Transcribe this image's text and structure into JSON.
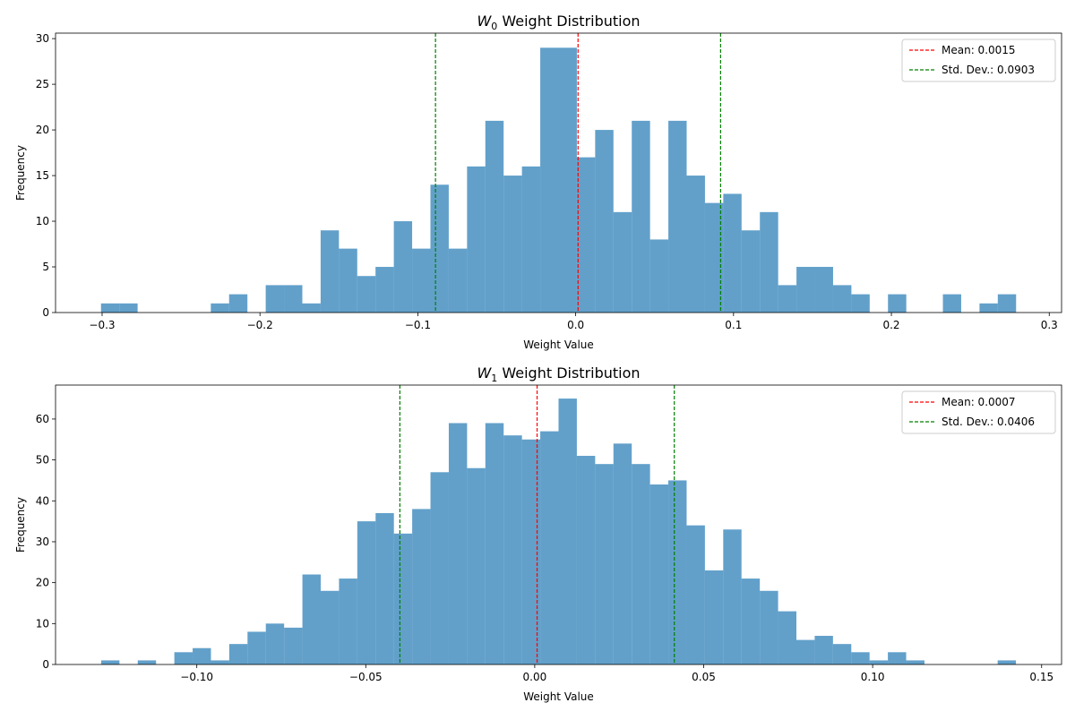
{
  "chart_data": [
    {
      "type": "bar",
      "title_var": "W",
      "title_sub": "0",
      "title_rest": " Weight Distribution",
      "xlabel": "Weight Value",
      "ylabel": "Frequency",
      "bin_range": [
        -0.3007,
        0.279
      ],
      "xlim": [
        -0.3295,
        0.3078
      ],
      "ylim": [
        0,
        30.6
      ],
      "xticks": [
        -0.3,
        -0.2,
        -0.1,
        0.0,
        0.1,
        0.2,
        0.3
      ],
      "xtick_labels": [
        "−0.3",
        "−0.2",
        "−0.1",
        "0.0",
        "0.1",
        "0.2",
        "0.3"
      ],
      "yticks": [
        0,
        5,
        10,
        15,
        20,
        25,
        30
      ],
      "ytick_labels": [
        "0",
        "5",
        "10",
        "15",
        "20",
        "25",
        "30"
      ],
      "values": [
        1,
        1,
        0,
        0,
        0,
        0,
        1,
        2,
        0,
        3,
        3,
        1,
        9,
        7,
        4,
        5,
        10,
        7,
        14,
        7,
        16,
        21,
        15,
        16,
        29,
        29,
        17,
        20,
        11,
        21,
        8,
        21,
        15,
        12,
        13,
        9,
        11,
        3,
        5,
        5,
        3,
        2,
        0,
        2,
        0,
        0,
        2,
        0,
        1,
        2
      ],
      "bar_color": "#1f77b4",
      "mean": 0.0015,
      "std": 0.0903,
      "mean_color": "#ff0000",
      "std_color": "#008000",
      "legend": [
        "Mean: 0.0015",
        "Std. Dev.: 0.0903"
      ],
      "legend_position": "top-right",
      "grid": false
    },
    {
      "type": "bar",
      "title_var": "W",
      "title_sub": "1",
      "title_rest": " Weight Distribution",
      "xlabel": "Weight Value",
      "ylabel": "Frequency",
      "bin_range": [
        -0.1283,
        0.1424
      ],
      "xlim": [
        -0.1418,
        0.1559
      ],
      "ylim": [
        0,
        68.3
      ],
      "xticks": [
        -0.1,
        -0.05,
        0.0,
        0.05,
        0.1,
        0.15
      ],
      "xtick_labels": [
        "−0.10",
        "−0.05",
        "0.00",
        "0.05",
        "0.10",
        "0.15"
      ],
      "yticks": [
        0,
        10,
        20,
        30,
        40,
        50,
        60
      ],
      "ytick_labels": [
        "0",
        "10",
        "20",
        "30",
        "40",
        "50",
        "60"
      ],
      "values": [
        1,
        0,
        1,
        0,
        3,
        4,
        1,
        5,
        8,
        10,
        9,
        22,
        18,
        21,
        35,
        37,
        32,
        38,
        47,
        59,
        48,
        59,
        56,
        55,
        57,
        65,
        51,
        49,
        54,
        49,
        44,
        45,
        34,
        23,
        33,
        21,
        18,
        13,
        6,
        7,
        5,
        3,
        1,
        3,
        1,
        0,
        0,
        0,
        0,
        1
      ],
      "bar_color": "#1f77b4",
      "mean": 0.0007,
      "std": 0.0406,
      "mean_color": "#ff0000",
      "std_color": "#008000",
      "legend": [
        "Mean: 0.0007",
        "Std. Dev.: 0.0406"
      ],
      "legend_position": "top-right",
      "grid": false
    }
  ]
}
